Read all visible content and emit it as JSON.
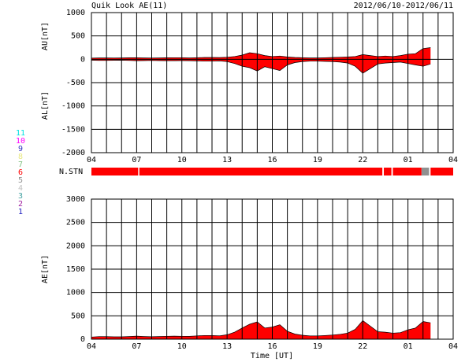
{
  "chart_data": [
    {
      "type": "area",
      "title": "Quik Look AE(11)",
      "subtitle": "2012/06/10-2012/06/11",
      "ylabel_top": "AU[nT]",
      "ylabel_bottom": "AL[nT]",
      "x": [
        0,
        0.5,
        1,
        1.5,
        2,
        2.5,
        3,
        3.5,
        4,
        4.5,
        5,
        5.5,
        6,
        6.5,
        7,
        7.5,
        8,
        8.5,
        9,
        9.5,
        10,
        10.5,
        11,
        11.5,
        12,
        12.5,
        13,
        13.5,
        14,
        14.5,
        15,
        15.5,
        16,
        16.5,
        17,
        17.5,
        18,
        18.5,
        19,
        19.5,
        20,
        20.5,
        21,
        21.5,
        22,
        22.5
      ],
      "series": [
        {
          "name": "AU",
          "color": "#ff0000",
          "values": [
            25,
            30,
            30,
            28,
            30,
            32,
            35,
            30,
            28,
            30,
            32,
            35,
            35,
            30,
            35,
            40,
            40,
            38,
            45,
            60,
            90,
            140,
            120,
            80,
            60,
            70,
            50,
            40,
            35,
            30,
            30,
            35,
            40,
            45,
            50,
            60,
            100,
            80,
            60,
            70,
            60,
            80,
            110,
            120,
            230,
            250
          ]
        },
        {
          "name": "AL",
          "color": "#ff0000",
          "values": [
            -20,
            -25,
            -25,
            -22,
            -20,
            -25,
            -30,
            -28,
            -25,
            -28,
            -30,
            -30,
            -28,
            -30,
            -35,
            -40,
            -40,
            -35,
            -50,
            -90,
            -150,
            -180,
            -250,
            -160,
            -200,
            -240,
            -120,
            -70,
            -50,
            -40,
            -40,
            -45,
            -50,
            -60,
            -80,
            -150,
            -300,
            -200,
            -100,
            -80,
            -70,
            -60,
            -90,
            -120,
            -150,
            -100
          ]
        }
      ],
      "xlim": [
        0,
        24
      ],
      "xticks": [
        {
          "value": 0,
          "label": "04"
        },
        {
          "value": 3,
          "label": "07"
        },
        {
          "value": 6,
          "label": "10"
        },
        {
          "value": 9,
          "label": "13"
        },
        {
          "value": 12,
          "label": "16"
        },
        {
          "value": 15,
          "label": "19"
        },
        {
          "value": 18,
          "label": "22"
        },
        {
          "value": 21,
          "label": "01"
        },
        {
          "value": 24,
          "label": "04"
        }
      ],
      "xgrid": [
        1,
        2,
        4,
        5,
        7,
        8,
        10,
        11,
        13,
        14,
        16,
        17,
        19,
        20,
        22,
        23
      ],
      "ylim": [
        -2000,
        1000
      ],
      "yticks": [
        -2000,
        -1500,
        -1000,
        -500,
        0,
        500,
        1000
      ],
      "grid": true
    },
    {
      "type": "segments",
      "ylabel": "N.STN",
      "xlim": [
        0,
        24
      ],
      "segments": [
        {
          "start": 0,
          "end": 3.1,
          "count": 6
        },
        {
          "start": 3.18,
          "end": 19.3,
          "count": 6
        },
        {
          "start": 19.4,
          "end": 19.9,
          "count": 6
        },
        {
          "start": 20.0,
          "end": 21.9,
          "count": 6
        },
        {
          "start": 21.9,
          "end": 22.4,
          "count": 5
        },
        {
          "start": 22.5,
          "end": 24,
          "count": 6
        }
      ],
      "legend": {
        "labels": [
          "11",
          "10",
          "9",
          "8",
          "7",
          "6",
          "5",
          "4",
          "3",
          "2",
          "1"
        ],
        "counts": [
          11,
          10,
          9,
          8,
          7,
          6,
          5,
          4,
          3,
          2,
          1
        ],
        "colors": [
          "#00e0e0",
          "#ff00ff",
          "#3030c0",
          "#e8e880",
          "#80c080",
          "#ff0000",
          "#909090",
          "#c0c0c0",
          "#40a0a0",
          "#a020a0",
          "#2020c0"
        ]
      }
    },
    {
      "type": "area",
      "ylabel": "AE[nT]",
      "xlabel": "Time [UT]",
      "x": [
        0,
        0.5,
        1,
        1.5,
        2,
        2.5,
        3,
        3.5,
        4,
        4.5,
        5,
        5.5,
        6,
        6.5,
        7,
        7.5,
        8,
        8.5,
        9,
        9.5,
        10,
        10.5,
        11,
        11.5,
        12,
        12.5,
        13,
        13.5,
        14,
        14.5,
        15,
        15.5,
        16,
        16.5,
        17,
        17.5,
        18,
        18.5,
        19,
        19.5,
        20,
        20.5,
        21,
        21.5,
        22,
        22.5
      ],
      "series": [
        {
          "name": "AE",
          "color": "#ff0000",
          "values": [
            45,
            55,
            55,
            50,
            50,
            57,
            65,
            58,
            53,
            58,
            62,
            65,
            63,
            60,
            70,
            80,
            80,
            73,
            95,
            150,
            240,
            320,
            370,
            240,
            260,
            310,
            170,
            110,
            85,
            70,
            70,
            80,
            90,
            105,
            130,
            210,
            400,
            280,
            160,
            150,
            130,
            140,
            200,
            240,
            380,
            350
          ]
        }
      ],
      "xlim": [
        0,
        24
      ],
      "xticks": [
        {
          "value": 0,
          "label": "04"
        },
        {
          "value": 3,
          "label": "07"
        },
        {
          "value": 6,
          "label": "10"
        },
        {
          "value": 9,
          "label": "13"
        },
        {
          "value": 12,
          "label": "16"
        },
        {
          "value": 15,
          "label": "19"
        },
        {
          "value": 18,
          "label": "22"
        },
        {
          "value": 21,
          "label": "01"
        },
        {
          "value": 24,
          "label": "04"
        }
      ],
      "xgrid": [
        1,
        2,
        4,
        5,
        7,
        8,
        10,
        11,
        13,
        14,
        16,
        17,
        19,
        20,
        22,
        23
      ],
      "ylim": [
        0,
        3000
      ],
      "yticks": [
        0,
        500,
        1000,
        1500,
        2000,
        2500,
        3000
      ],
      "grid": true
    }
  ]
}
